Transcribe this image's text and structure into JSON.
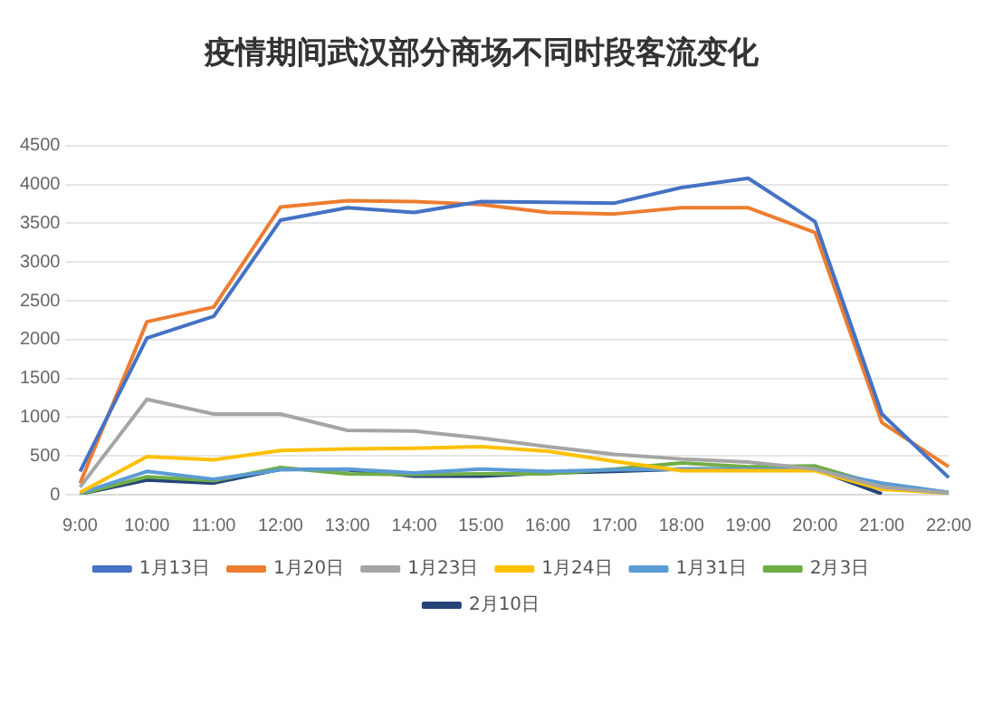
{
  "chart_data": {
    "type": "line",
    "title": "疫情期间武汉部分商场不同时段客流变化",
    "categories": [
      "9:00",
      "10:00",
      "11:00",
      "12:00",
      "13:00",
      "14:00",
      "15:00",
      "16:00",
      "17:00",
      "18:00",
      "19:00",
      "20:00",
      "21:00",
      "22:00"
    ],
    "series": [
      {
        "name": "1月13日",
        "color": "#4472c4",
        "values": [
          300,
          2020,
          2300,
          3540,
          3700,
          3640,
          3780,
          3770,
          3760,
          3960,
          4080,
          3520,
          1040,
          220
        ]
      },
      {
        "name": "1月20日",
        "color": "#ed7d31",
        "values": [
          150,
          2230,
          2420,
          3710,
          3790,
          3780,
          3740,
          3640,
          3620,
          3700,
          3700,
          3380,
          930,
          360
        ]
      },
      {
        "name": "1月23日",
        "color": "#a5a5a5",
        "values": [
          100,
          1230,
          1040,
          1040,
          830,
          820,
          730,
          620,
          520,
          460,
          420,
          330,
          100,
          20
        ]
      },
      {
        "name": "1月24日",
        "color": "#ffc000",
        "values": [
          30,
          490,
          450,
          570,
          590,
          600,
          620,
          560,
          430,
          310,
          310,
          310,
          70,
          20
        ]
      },
      {
        "name": "1月31日",
        "color": "#5b9bd5",
        "values": [
          20,
          300,
          200,
          320,
          330,
          280,
          330,
          300,
          320,
          330,
          330,
          320,
          150,
          30
        ]
      },
      {
        "name": "2月3日",
        "color": "#70ad47",
        "values": [
          10,
          230,
          180,
          350,
          270,
          260,
          270,
          270,
          330,
          410,
          360,
          370,
          120,
          30
        ]
      },
      {
        "name": "2月10日",
        "color": "#264478",
        "values": [
          10,
          190,
          150,
          330,
          320,
          240,
          240,
          280,
          300,
          330,
          330,
          330,
          10,
          null
        ]
      }
    ],
    "ylim": [
      0,
      4500
    ],
    "yticks": [
      0,
      500,
      1000,
      1500,
      2000,
      2500,
      3000,
      3500,
      4000,
      4500
    ],
    "grid": "y",
    "legend": "bottom",
    "marker": "none",
    "line_style": "solid"
  }
}
